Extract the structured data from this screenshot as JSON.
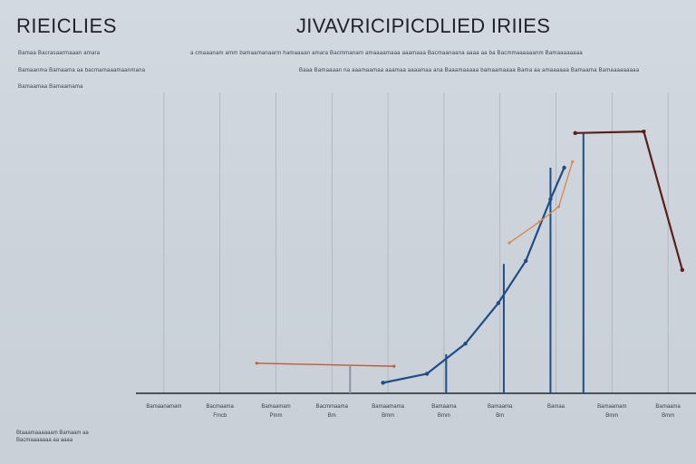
{
  "header": {
    "left_title": "RIEICLIES",
    "main_title": "JIVAVRICIPICDLIED IRIIES"
  },
  "subtitles": [
    "Bamaa Bacrasaarmaaan amara",
    "a  cmaaanam amm bamaamanaarm hamaaaan amara Bacmmanam amaaaamaaa aaamaaa Bacmaanaana aaaa aa ba Bacmmaaaaaanm Bamaaaaaaaa",
    "Bamaanma Bamaama aa bacmamaaamaanmana",
    "Baaa Bamaaaan na  aaamaamaa aaamaa aaaamaa ana Baaamaaaaa bamaamaaaa Bama aa amaaaaaa Bamaama Bamaaaaaaaaa",
    "Bamaamaa Bamaamama"
  ],
  "footnote": [
    "Btaaamaaaaaam Bamaam aa",
    "Bacmaaaaaaa aa aaaa"
  ],
  "chart_data": {
    "type": "line",
    "categories": [
      "Bamaanamam",
      "Bacmaama",
      "Bamaamam",
      "Bacmmaama",
      "Bamaamama",
      "Bamaama",
      "Bamaama",
      "Bamaa",
      "Bamaamam",
      "Bamaama"
    ],
    "category_sublabels": [
      "",
      "Fmcb",
      "Pmm",
      "Bm",
      "Bmm",
      "Bmm",
      "Bm",
      "",
      "Bmm",
      "Bmm"
    ],
    "series": [
      {
        "color": "#1f4e86",
        "values": [
          {
            "x": 0.18,
            "y": 3.5
          },
          {
            "x": 0.34,
            "y": 6.5
          },
          {
            "x": 0.48,
            "y": 16.5
          },
          {
            "x": 0.6,
            "y": 30.0
          },
          {
            "x": 0.7,
            "y": 44.0
          },
          {
            "x": 0.79,
            "y": 64.5
          },
          {
            "x": 0.84,
            "y": 75.0
          }
        ]
      },
      {
        "color": "#5a1f1a",
        "values": [
          {
            "x": 0.88,
            "y": 86.5
          },
          {
            "x": 1.13,
            "y": 87.0
          },
          {
            "x": 1.27,
            "y": 41.0
          }
        ]
      },
      {
        "color": "#c05a3a",
        "values": [
          {
            "x": -0.28,
            "y": 10.0
          },
          {
            "x": 0.22,
            "y": 9.0
          }
        ]
      },
      {
        "color": "#d98a55",
        "values": [
          {
            "x": 0.64,
            "y": 50.0
          },
          {
            "x": 0.75,
            "y": 57.0
          },
          {
            "x": 0.82,
            "y": 62.0
          },
          {
            "x": 0.87,
            "y": 77.0
          }
        ]
      }
    ],
    "vertical_markers": [
      {
        "x": 0.06,
        "y": 9.0,
        "color": "#8a96a3"
      },
      {
        "x": 0.41,
        "y": 13.0,
        "color": "#1f4e86"
      },
      {
        "x": 0.62,
        "y": 43.0,
        "color": "#1f4e86"
      },
      {
        "x": 0.79,
        "y": 75.0,
        "color": "#1f4e86"
      },
      {
        "x": 0.91,
        "y": 86.5,
        "color": "#1f4e86"
      }
    ],
    "xlim": [
      -0.72,
      1.32
    ],
    "ylim": [
      0,
      100
    ],
    "grid": "vertical",
    "legend": "none"
  }
}
